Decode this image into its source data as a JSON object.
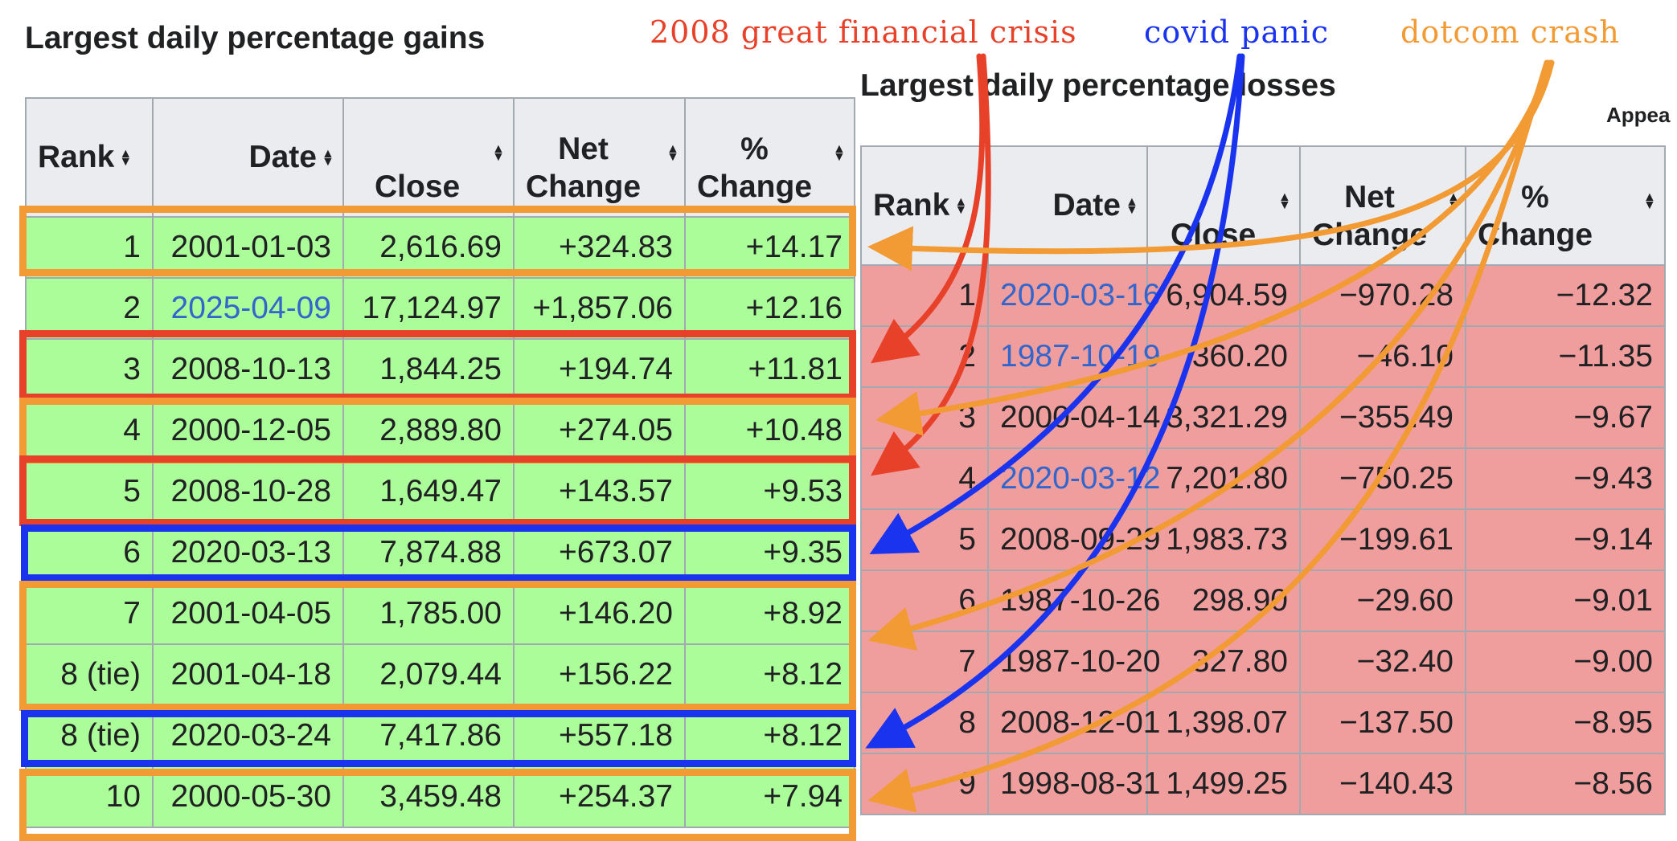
{
  "gains": {
    "title": "Largest daily percentage gains",
    "headers": {
      "rank": "Rank",
      "date": "Date",
      "close": "Close",
      "net_1": "Net",
      "net_2": "Change",
      "pct_1": "%",
      "pct_2": "Change"
    },
    "rows": [
      {
        "rank": "1",
        "date": "2001-01-03",
        "close": "2,616.69",
        "net": "+324.83",
        "pct": "+14.17"
      },
      {
        "rank": "2",
        "date": "2025-04-09",
        "close": "17,124.97",
        "net": "+1,857.06",
        "pct": "+12.16"
      },
      {
        "rank": "3",
        "date": "2008-10-13",
        "close": "1,844.25",
        "net": "+194.74",
        "pct": "+11.81"
      },
      {
        "rank": "4",
        "date": "2000-12-05",
        "close": "2,889.80",
        "net": "+274.05",
        "pct": "+10.48"
      },
      {
        "rank": "5",
        "date": "2008-10-28",
        "close": "1,649.47",
        "net": "+143.57",
        "pct": "+9.53"
      },
      {
        "rank": "6",
        "date": "2020-03-13",
        "close": "7,874.88",
        "net": "+673.07",
        "pct": "+9.35"
      },
      {
        "rank": "7",
        "date": "2001-04-05",
        "close": "1,785.00",
        "net": "+146.20",
        "pct": "+8.92"
      },
      {
        "rank": "8 (tie)",
        "date": "2001-04-18",
        "close": "2,079.44",
        "net": "+156.22",
        "pct": "+8.12"
      },
      {
        "rank": "8 (tie)",
        "date": "2020-03-24",
        "close": "7,417.86",
        "net": "+557.18",
        "pct": "+8.12"
      },
      {
        "rank": "10",
        "date": "2000-05-30",
        "close": "3,459.48",
        "net": "+254.37",
        "pct": "+7.94"
      }
    ]
  },
  "losses": {
    "title": "Largest daily percentage losses",
    "headers": {
      "rank": "Rank",
      "date": "Date",
      "close": "Close",
      "net_1": "Net",
      "net_2": "Change",
      "pct_1": "%",
      "pct_2": "Change"
    },
    "rows": [
      {
        "rank": "1",
        "date": "2020-03-16",
        "close": "6,904.59",
        "net": "−970.28",
        "pct": "−12.32"
      },
      {
        "rank": "2",
        "date": "1987-10-19",
        "close": "360.20",
        "net": "−46.10",
        "pct": "−11.35"
      },
      {
        "rank": "3",
        "date": "2000-04-14",
        "close": "3,321.29",
        "net": "−355.49",
        "pct": "−9.67"
      },
      {
        "rank": "4",
        "date": "2020-03-12",
        "close": "7,201.80",
        "net": "−750.25",
        "pct": "−9.43"
      },
      {
        "rank": "5",
        "date": "2008-09-29",
        "close": "1,983.73",
        "net": "−199.61",
        "pct": "−9.14"
      },
      {
        "rank": "6",
        "date": "1987-10-26",
        "close": "298.90",
        "net": "−29.60",
        "pct": "−9.01"
      },
      {
        "rank": "7",
        "date": "1987-10-20",
        "close": "327.80",
        "net": "−32.40",
        "pct": "−9.00"
      },
      {
        "rank": "8",
        "date": "2008-12-01",
        "close": "1,398.07",
        "net": "−137.50",
        "pct": "−8.95"
      },
      {
        "rank": "9",
        "date": "1998-08-31",
        "close": "1,499.25",
        "net": "−140.43",
        "pct": "−8.56"
      }
    ]
  },
  "annotations": {
    "gfc": {
      "label": "2008 great financial crisis",
      "color": "#e8412a"
    },
    "covid": {
      "label": "covid panic",
      "color": "#1a33ee"
    },
    "dotcom": {
      "label": "dotcom crash",
      "color": "#f29a34"
    }
  },
  "sidebar": {
    "appearance": "Appea"
  }
}
